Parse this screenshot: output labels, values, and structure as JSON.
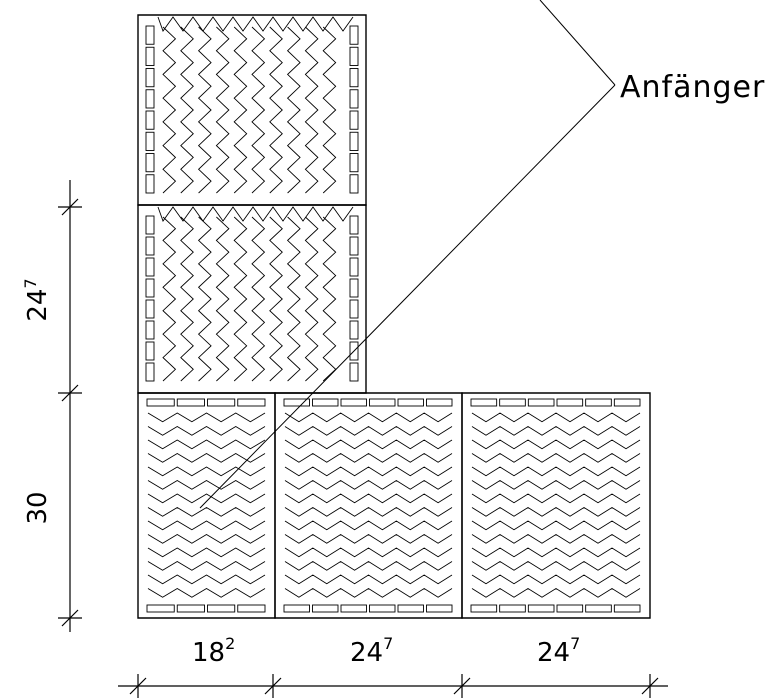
{
  "callout": {
    "label": "Anfänger"
  },
  "dimensions": {
    "vertical": [
      {
        "base": "24",
        "sup": "7"
      },
      {
        "base": "30",
        "sup": ""
      }
    ],
    "horizontal": [
      {
        "base": "18",
        "sup": "2"
      },
      {
        "base": "24",
        "sup": "7"
      },
      {
        "base": "24",
        "sup": "7"
      }
    ]
  },
  "colors": {
    "line": "#000000",
    "background": "#ffffff"
  }
}
